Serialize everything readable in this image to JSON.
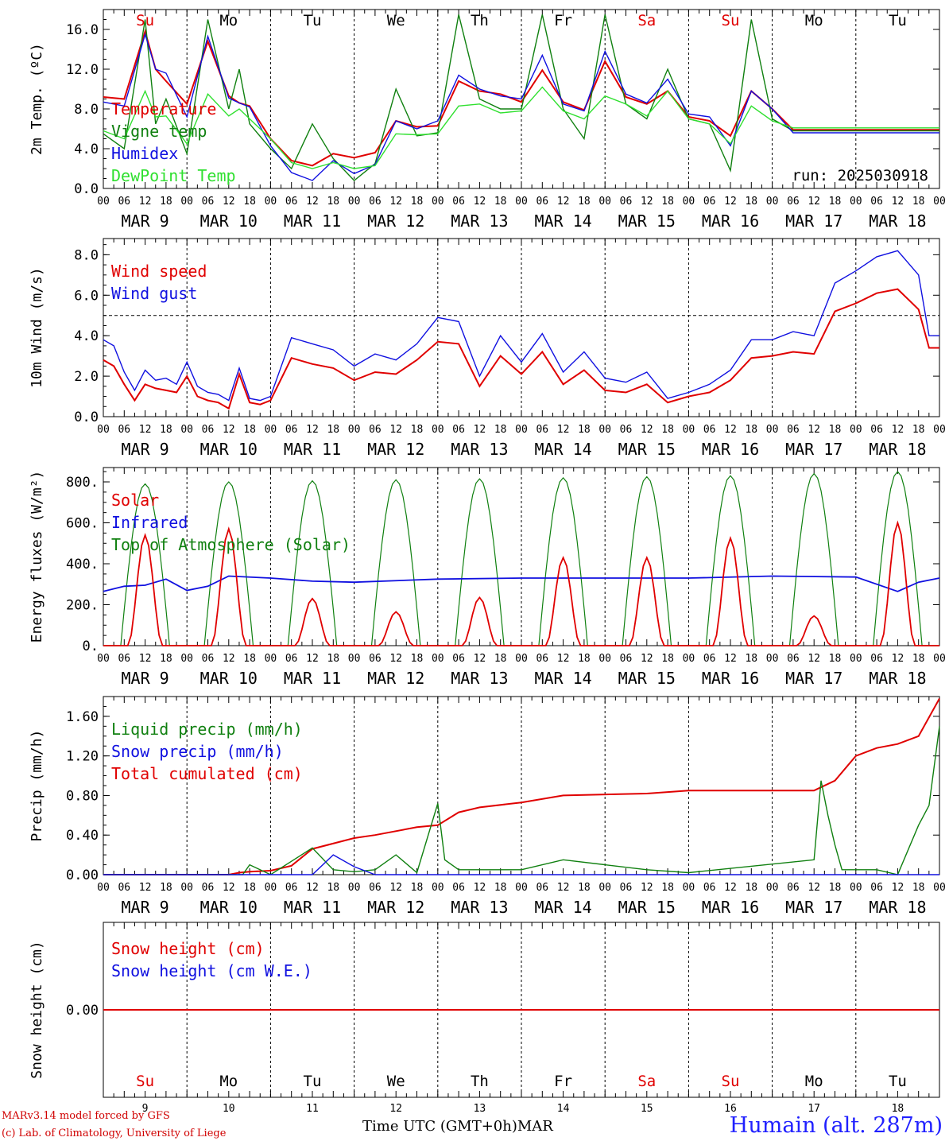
{
  "footer": {
    "credit_line1": "MARv3.14 model forced by GFS",
    "credit_line2": "(c) Lab. of Climatology, University of Liege",
    "x_title": "Time UTC (GMT+0h)MAR",
    "station": "Humain (alt. 287m)"
  },
  "colors": {
    "red": "#e00000",
    "dark_green": "#108010",
    "blue": "#1010e0",
    "light_green": "#30e030",
    "weekend": "#e00000"
  },
  "chart_data": [
    {
      "type": "line",
      "id": "temp",
      "ylabel": "2m Temp. (ºC)",
      "ylim": [
        0,
        18
      ],
      "yticks": [
        "0.0",
        "4.0",
        "8.0",
        "12.0",
        "16.0"
      ],
      "ytick_values": [
        0,
        4,
        8,
        12,
        16
      ],
      "annotation": "run: 2025030918",
      "legend": [
        "Temperature",
        "Vigne temp",
        "Humidex",
        "DewPoint Temp"
      ],
      "day_labels": [
        "Su",
        "Mo",
        "Tu",
        "We",
        "Th",
        "Fr",
        "Sa",
        "Su",
        "Mo",
        "Tu"
      ],
      "x_hours": [
        0,
        6,
        12,
        15,
        18,
        24,
        30,
        36,
        39,
        42,
        48,
        54,
        60,
        66,
        72,
        78,
        84,
        90,
        96,
        102,
        108,
        114,
        120,
        126,
        132,
        138,
        144,
        150,
        156,
        162,
        168,
        174,
        180,
        186,
        192,
        198,
        204,
        210,
        216,
        222,
        228,
        234,
        240
      ],
      "series": [
        {
          "name": "Temperature",
          "color": "red",
          "values": [
            9.2,
            9.0,
            15.8,
            12.0,
            10.8,
            8.5,
            14.8,
            9.3,
            8.6,
            8.3,
            5.0,
            2.8,
            2.3,
            3.5,
            3.1,
            3.6,
            6.8,
            6.2,
            6.3,
            10.8,
            9.8,
            9.5,
            8.7,
            11.9,
            8.7,
            7.9,
            12.8,
            9.2,
            8.5,
            9.8,
            7.2,
            6.8,
            5.3,
            9.8,
            8.0,
            5.9,
            5.9,
            5.9,
            5.9,
            5.9,
            5.9,
            5.9,
            5.9
          ]
        },
        {
          "name": "Vigne temp",
          "color": "dark_green",
          "values": [
            5.5,
            4.0,
            17.0,
            6.5,
            9.0,
            3.5,
            17.0,
            8.0,
            12.0,
            6.5,
            4.0,
            2.0,
            6.5,
            3.0,
            0.8,
            2.5,
            10.0,
            5.3,
            5.6,
            17.5,
            9.0,
            8.0,
            8.0,
            17.5,
            8.0,
            5.0,
            17.5,
            8.5,
            7.0,
            12.0,
            7.0,
            6.5,
            1.8,
            17.0,
            7.0,
            5.8,
            5.8,
            5.8,
            5.8,
            5.8,
            5.8,
            5.8,
            5.8
          ]
        },
        {
          "name": "Humidex",
          "color": "blue",
          "values": [
            8.7,
            8.3,
            15.5,
            12.0,
            11.6,
            7.2,
            15.3,
            9.1,
            8.6,
            8.2,
            4.3,
            1.6,
            0.8,
            2.8,
            1.5,
            2.4,
            6.8,
            6.0,
            6.8,
            11.4,
            10.0,
            9.3,
            9.0,
            13.4,
            8.5,
            7.8,
            13.8,
            9.5,
            8.6,
            11.0,
            7.5,
            7.2,
            4.3,
            9.8,
            8.0,
            5.6,
            5.6,
            5.6,
            5.6,
            5.6,
            5.6,
            5.6,
            5.6
          ]
        },
        {
          "name": "DewPoint Temp",
          "color": "light_green",
          "values": [
            5.8,
            5.0,
            9.8,
            7.2,
            7.3,
            4.5,
            9.5,
            7.3,
            8.0,
            7.0,
            5.0,
            2.6,
            2.0,
            2.6,
            2.0,
            2.3,
            5.5,
            5.4,
            5.5,
            8.3,
            8.5,
            7.6,
            7.8,
            10.2,
            7.8,
            7.0,
            9.3,
            8.5,
            7.3,
            9.8,
            7.0,
            6.5,
            4.5,
            8.3,
            6.8,
            6.1,
            6.1,
            6.1,
            6.1,
            6.1,
            6.1,
            6.1,
            6.1
          ]
        }
      ]
    },
    {
      "type": "line",
      "id": "wind",
      "ylabel": "10m Wind (m/s)",
      "ylim": [
        0,
        8.8
      ],
      "yticks": [
        "0.0",
        "2.0",
        "4.0",
        "6.0",
        "8.0"
      ],
      "ytick_values": [
        0,
        2,
        4,
        6,
        8
      ],
      "ref_line": 5.0,
      "legend": [
        "Wind speed",
        "Wind gust"
      ],
      "x_hours": [
        0,
        3,
        6,
        9,
        12,
        15,
        18,
        21,
        24,
        27,
        30,
        33,
        36,
        39,
        42,
        45,
        48,
        54,
        60,
        66,
        72,
        78,
        84,
        90,
        96,
        102,
        108,
        114,
        120,
        126,
        132,
        138,
        144,
        150,
        156,
        162,
        168,
        174,
        180,
        186,
        192,
        198,
        204,
        210,
        216,
        222,
        228,
        234,
        237,
        240
      ],
      "series": [
        {
          "name": "Wind speed",
          "color": "red",
          "values": [
            2.8,
            2.5,
            1.6,
            0.8,
            1.6,
            1.4,
            1.3,
            1.2,
            2.0,
            1.0,
            0.8,
            0.7,
            0.4,
            2.1,
            0.7,
            0.6,
            0.8,
            2.9,
            2.6,
            2.4,
            1.8,
            2.2,
            2.1,
            2.8,
            3.7,
            3.6,
            1.5,
            3.0,
            2.1,
            3.2,
            1.6,
            2.3,
            1.3,
            1.2,
            1.6,
            0.7,
            1.0,
            1.2,
            1.8,
            2.9,
            3.0,
            3.2,
            3.1,
            5.2,
            5.6,
            6.1,
            6.3,
            5.3,
            3.4,
            3.4
          ]
        },
        {
          "name": "Wind gust",
          "color": "blue",
          "values": [
            3.8,
            3.5,
            2.2,
            1.3,
            2.3,
            1.8,
            1.9,
            1.6,
            2.7,
            1.5,
            1.2,
            1.1,
            0.8,
            2.4,
            0.9,
            0.8,
            1.0,
            3.9,
            3.6,
            3.3,
            2.5,
            3.1,
            2.8,
            3.6,
            4.9,
            4.7,
            2.0,
            4.0,
            2.7,
            4.1,
            2.2,
            3.2,
            1.9,
            1.7,
            2.2,
            0.9,
            1.2,
            1.6,
            2.3,
            3.8,
            3.8,
            4.2,
            4.0,
            6.6,
            7.2,
            7.9,
            8.2,
            7.0,
            4.0,
            4.0
          ]
        }
      ]
    },
    {
      "type": "line",
      "id": "energy",
      "ylabel": "Energy fluxes (W/m²)",
      "ylim": [
        0,
        870
      ],
      "yticks": [
        "0.",
        "200.",
        "400.",
        "600.",
        "800."
      ],
      "ytick_values": [
        0,
        200,
        400,
        600,
        800
      ],
      "legend": [
        "Solar",
        "Infrared",
        "Top of Atmosphere (Solar)"
      ],
      "solar_peaks": [
        540,
        570,
        230,
        165,
        235,
        430,
        430,
        525,
        145,
        600
      ],
      "toa_peaks": [
        790,
        800,
        805,
        810,
        815,
        820,
        825,
        830,
        840,
        850
      ],
      "series": [
        {
          "name": "Infrared",
          "color": "blue",
          "x_hours": [
            0,
            6,
            12,
            18,
            24,
            30,
            36,
            48,
            60,
            72,
            96,
            120,
            144,
            168,
            192,
            216,
            228,
            234,
            240
          ],
          "values": [
            265,
            290,
            295,
            325,
            270,
            290,
            340,
            330,
            315,
            310,
            325,
            330,
            330,
            330,
            340,
            335,
            265,
            310,
            330
          ]
        }
      ]
    },
    {
      "type": "line",
      "id": "precip",
      "ylabel": "Precip (mm/h)",
      "ylim": [
        0,
        1.8
      ],
      "yticks": [
        "0.00",
        "0.40",
        "0.80",
        "1.20",
        "1.60"
      ],
      "ytick_values": [
        0,
        0.4,
        0.8,
        1.2,
        1.6
      ],
      "legend": [
        "Liquid precip (mm/h)",
        "Snow precip (mm/h)",
        "Total cumulated (cm)"
      ],
      "series": [
        {
          "name": "Total cumulated (cm)",
          "color": "red",
          "x_hours": [
            0,
            36,
            39,
            42,
            48,
            54,
            60,
            72,
            78,
            90,
            96,
            102,
            108,
            120,
            132,
            156,
            168,
            204,
            210,
            216,
            222,
            228,
            234,
            240
          ],
          "values": [
            0,
            0,
            0.02,
            0.03,
            0.04,
            0.09,
            0.26,
            0.37,
            0.4,
            0.48,
            0.5,
            0.63,
            0.68,
            0.73,
            0.8,
            0.82,
            0.85,
            0.85,
            0.95,
            1.2,
            1.28,
            1.32,
            1.4,
            1.78
          ]
        },
        {
          "name": "Liquid precip (mm/h)",
          "color": "dark_green",
          "x_hours": [
            0,
            40,
            42,
            48,
            60,
            66,
            72,
            78,
            84,
            90,
            96,
            98,
            102,
            108,
            120,
            132,
            156,
            168,
            204,
            206,
            208,
            210,
            212,
            216,
            222,
            228,
            234,
            237,
            240
          ],
          "values": [
            0,
            0,
            0.1,
            0,
            0.27,
            0.05,
            0.03,
            0.05,
            0.2,
            0.02,
            0.72,
            0.15,
            0.05,
            0.05,
            0.05,
            0.15,
            0.05,
            0.02,
            0.15,
            0.95,
            0.6,
            0.3,
            0.05,
            0.05,
            0.05,
            0.0,
            0.5,
            0.7,
            1.5
          ]
        },
        {
          "name": "Snow precip (mm/h)",
          "color": "blue",
          "x_hours": [
            0,
            60,
            66,
            72,
            78,
            240
          ],
          "values": [
            0,
            0,
            0.2,
            0.08,
            0,
            0
          ]
        }
      ]
    },
    {
      "type": "line",
      "id": "snow",
      "ylabel": "Snow height (cm)",
      "ylim": [
        -1,
        1
      ],
      "yticks": [
        "0.00"
      ],
      "ytick_values": [
        0
      ],
      "legend": [
        "Snow height (cm)",
        "Snow height (cm W.E.)"
      ],
      "day_labels": [
        "Su",
        "Mo",
        "Tu",
        "We",
        "Th",
        "Fr",
        "Sa",
        "Su",
        "Mo",
        "Tu"
      ],
      "day_numbers": [
        "9",
        "10",
        "11",
        "12",
        "13",
        "14",
        "15",
        "16",
        "17",
        "18"
      ],
      "series": [
        {
          "name": "Snow height (cm)",
          "color": "red",
          "x_hours": [
            0,
            240
          ],
          "values": [
            0,
            0
          ]
        }
      ]
    }
  ],
  "x_axis": {
    "hour_labels": [
      "00",
      "06",
      "12",
      "18"
    ],
    "end_label": "00",
    "dates": [
      "MAR 9",
      "MAR 10",
      "MAR 11",
      "MAR 12",
      "MAR 13",
      "MAR 14",
      "MAR 15",
      "MAR 16",
      "MAR 17",
      "MAR 18"
    ],
    "weekend_days": [
      0,
      6,
      7
    ]
  }
}
